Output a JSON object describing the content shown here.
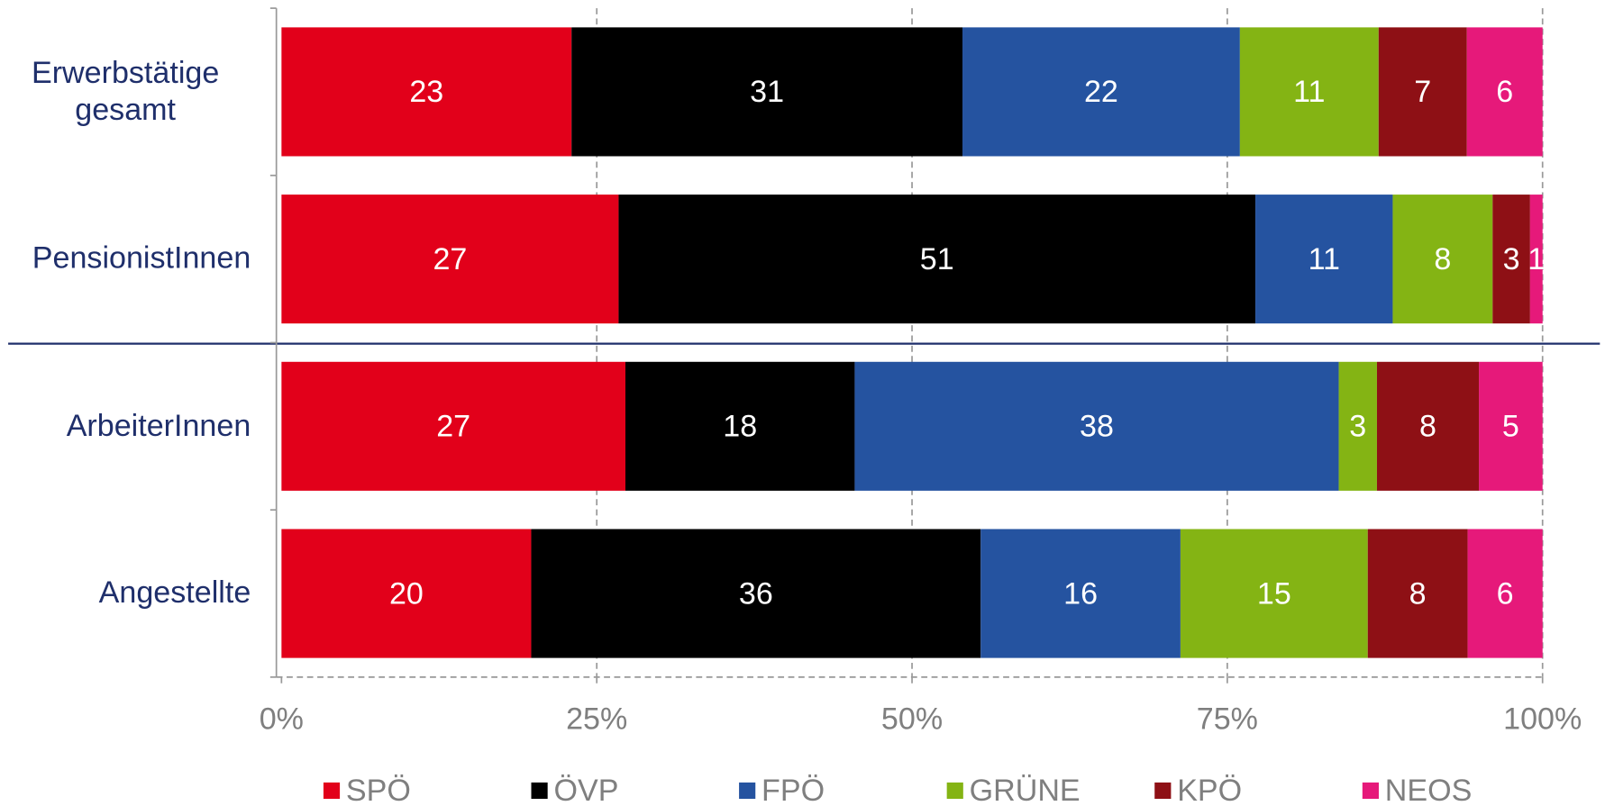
{
  "chart_data": {
    "type": "stacked-bar-100",
    "categories": [
      "Erwerbstätige gesamt",
      "PensionistInnen",
      "ArbeiterInnen",
      "Angestellte"
    ],
    "series": [
      {
        "name": "SPÖ",
        "color": "#e2001a",
        "values": [
          23,
          27,
          27,
          20
        ]
      },
      {
        "name": "ÖVP",
        "color": "#000000",
        "values": [
          31,
          51,
          18,
          36
        ]
      },
      {
        "name": "FPÖ",
        "color": "#2553a0",
        "values": [
          22,
          11,
          38,
          16
        ]
      },
      {
        "name": "GRÜNE",
        "color": "#84b414",
        "values": [
          11,
          8,
          3,
          15
        ]
      },
      {
        "name": "KPÖ",
        "color": "#8e1015",
        "values": [
          7,
          3,
          8,
          8
        ]
      },
      {
        "name": "NEOS",
        "color": "#e6197a",
        "values": [
          6,
          1,
          5,
          6
        ]
      }
    ],
    "xlim": [
      0,
      100
    ],
    "xticks": [
      {
        "value": 0,
        "label": "0%"
      },
      {
        "value": 25,
        "label": "25%"
      },
      {
        "value": 50,
        "label": "50%"
      },
      {
        "value": 75,
        "label": "75%"
      },
      {
        "value": 100,
        "label": "100%"
      }
    ],
    "grid": true,
    "legend": "bottom"
  }
}
